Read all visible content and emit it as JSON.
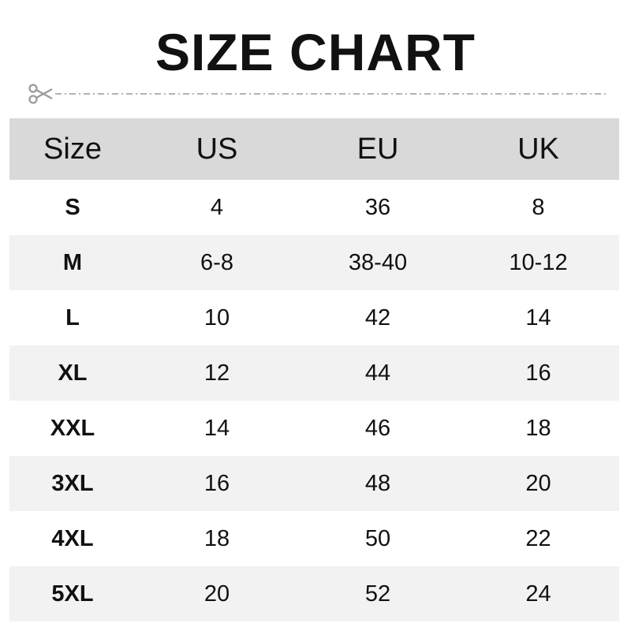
{
  "title": "SIZE CHART",
  "icons": {
    "cut": "scissors-icon"
  },
  "colors": {
    "header_bg": "#d9d9d9",
    "alt_row_bg": "#f2f2f2",
    "cutline": "#9a9a9a"
  },
  "table": {
    "headers": [
      "Size",
      "US",
      "EU",
      "UK"
    ],
    "rows": [
      [
        "S",
        "4",
        "36",
        "8"
      ],
      [
        "M",
        "6-8",
        "38-40",
        "10-12"
      ],
      [
        "L",
        "10",
        "42",
        "14"
      ],
      [
        "XL",
        "12",
        "44",
        "16"
      ],
      [
        "XXL",
        "14",
        "46",
        "18"
      ],
      [
        "3XL",
        "16",
        "48",
        "20"
      ],
      [
        "4XL",
        "18",
        "50",
        "22"
      ],
      [
        "5XL",
        "20",
        "52",
        "24"
      ]
    ]
  }
}
